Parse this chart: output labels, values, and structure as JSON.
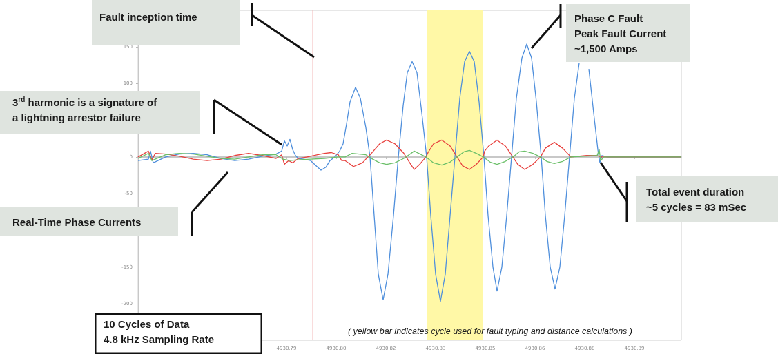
{
  "chart_data": {
    "type": "line",
    "xlim": [
      4930.747,
      4930.9044
    ],
    "xticks": [
      {
        "value": 4930.79,
        "label": "4930.79"
      },
      {
        "value": 4930.8044,
        "label": "4930.80"
      },
      {
        "value": 4930.8188,
        "label": "4930.82"
      },
      {
        "value": 4930.8332,
        "label": "4930.83"
      },
      {
        "value": 4930.8476,
        "label": "4930.85"
      },
      {
        "value": 4930.862,
        "label": "4930.86"
      },
      {
        "value": 4930.8764,
        "label": "4930.88"
      },
      {
        "value": 4930.8908,
        "label": "4930.89"
      }
    ],
    "ylim": [
      -250,
      200
    ],
    "yticks": [
      -200,
      -150,
      {
        "value": -100,
        "label": null
      },
      -50,
      0,
      {
        "value": 50,
        "label": null
      },
      100,
      150
    ],
    "series": [
      {
        "color": "#4f8fdc",
        "x": [
          4930.747,
          4930.75,
          4930.7506,
          4930.7514,
          4930.755,
          4930.759,
          4930.763,
          4930.767,
          4930.771,
          4930.775,
          4930.779,
          4930.783,
          4930.787,
          4930.7886,
          4930.7894,
          4930.7902,
          4930.791,
          4930.7918,
          4930.7926,
          4930.7934,
          4930.795,
          4930.797,
          4930.7986,
          4930.8,
          4930.8014,
          4930.8026,
          4930.804,
          4930.8054,
          4930.8064,
          4930.8074,
          4930.8084,
          4930.81,
          4930.8114,
          4930.813,
          4930.8142,
          4930.8154,
          4930.8166,
          4930.818,
          4930.8194,
          4930.821,
          4930.8224,
          4930.8238,
          4930.825,
          4930.8264,
          4930.8278,
          4930.8292,
          4930.8306,
          4930.8318,
          4930.8332,
          4930.8346,
          4930.836,
          4930.8374,
          4930.8388,
          4930.8402,
          4930.8416,
          4930.843,
          4930.8444,
          4930.8458,
          4930.8472,
          4930.8484,
          4930.8498,
          4930.851,
          4930.8524,
          4930.8538,
          4930.8552,
          4930.8566,
          4930.8582,
          4930.8596,
          4930.861,
          4930.8624,
          4930.8638,
          4930.865,
          4930.8664,
          4930.8678,
          4930.8692,
          4930.8706,
          4930.872,
          4930.8734,
          4930.8748,
          4930.8762,
          4930.8776,
          4930.879,
          4930.8802,
          4930.8808,
          4930.8814,
          4930.883,
          4930.9044
        ],
        "values": [
          -5,
          -3,
          8,
          -8,
          0,
          4,
          5,
          3,
          -2,
          -5,
          -3,
          1,
          4,
          8,
          22,
          15,
          24,
          10,
          2,
          -2,
          -3,
          -5,
          -12,
          -18,
          -14,
          -5,
          0,
          8,
          18,
          45,
          75,
          95,
          80,
          40,
          0,
          -80,
          -160,
          -195,
          -160,
          -80,
          0,
          70,
          115,
          130,
          115,
          60,
          0,
          -80,
          -160,
          -197,
          -160,
          -80,
          0,
          80,
          130,
          144,
          130,
          75,
          0,
          -80,
          -150,
          -183,
          -150,
          -80,
          0,
          80,
          135,
          154,
          135,
          75,
          0,
          -80,
          -150,
          -180,
          -150,
          -80,
          0,
          80,
          128,
          null,
          120,
          60,
          10,
          -8,
          2,
          0,
          0
        ]
      },
      {
        "color": "#e8423f",
        "x": [
          4930.747,
          4930.75,
          4930.751,
          4930.752,
          4930.755,
          4930.759,
          4930.763,
          4930.767,
          4930.771,
          4930.775,
          4930.779,
          4930.783,
          4930.787,
          4930.7886,
          4930.7894,
          4930.7906,
          4930.7918,
          4930.7934,
          4930.796,
          4930.799,
          4930.801,
          4930.803,
          4930.805,
          4930.806,
          4930.807,
          4930.8094,
          4930.812,
          4930.8146,
          4930.817,
          4930.819,
          4930.8214,
          4930.824,
          4930.826,
          4930.827,
          4930.8286,
          4930.8304,
          4930.831,
          4930.8326,
          4930.835,
          4930.8374,
          4930.8394,
          4930.841,
          4930.843,
          4930.845,
          4930.847,
          4930.8474,
          4930.8486,
          4930.851,
          4930.8534,
          4930.8556,
          4930.857,
          4930.859,
          4930.8614,
          4930.8636,
          4930.865,
          4930.8676,
          4930.87,
          4930.8724,
          4930.877,
          4930.88,
          4930.881,
          4930.9044
        ],
        "values": [
          0,
          8,
          -4,
          5,
          4,
          1,
          -3,
          -5,
          -3,
          2,
          5,
          2,
          -2,
          3,
          -10,
          -5,
          -8,
          -2,
          0,
          3,
          5,
          6,
          3,
          -5,
          -5,
          -13,
          -8,
          5,
          18,
          23,
          18,
          5,
          -10,
          -17,
          -10,
          0,
          6,
          18,
          23,
          15,
          0,
          -12,
          -17,
          -10,
          0,
          8,
          15,
          23,
          15,
          0,
          -10,
          -17,
          -10,
          0,
          12,
          20,
          12,
          0,
          2,
          2,
          0,
          0
        ]
      },
      {
        "color": "#6cc06a",
        "x": [
          4930.747,
          4930.75,
          4930.751,
          4930.755,
          4930.759,
          4930.763,
          4930.767,
          4930.771,
          4930.775,
          4930.779,
          4930.783,
          4930.787,
          4930.789,
          4930.791,
          4930.793,
          4930.797,
          4930.801,
          4930.805,
          4930.807,
          4930.809,
          4930.813,
          4930.815,
          4930.817,
          4930.819,
          4930.8214,
          4930.824,
          4930.827,
          4930.8304,
          4930.8326,
          4930.835,
          4930.8374,
          4930.8394,
          4930.8414,
          4930.843,
          4930.845,
          4930.847,
          4930.849,
          4930.851,
          4930.8534,
          4930.8556,
          4930.8574,
          4930.859,
          4930.8614,
          4930.8636,
          4930.8654,
          4930.8676,
          4930.87,
          4930.8724,
          4930.88,
          4930.8806,
          4930.881,
          4930.882,
          4930.9044
        ],
        "values": [
          -2,
          5,
          -5,
          3,
          5,
          4,
          1,
          -2,
          -3,
          0,
          3,
          3,
          -3,
          -5,
          -4,
          -3,
          -2,
          0,
          0,
          5,
          3,
          -3,
          -8,
          -10,
          -8,
          -2,
          8,
          0,
          -8,
          -11,
          -7,
          0,
          7,
          9,
          5,
          0,
          -7,
          -10,
          -6,
          0,
          7,
          8,
          5,
          0,
          -6,
          -9,
          -6,
          0,
          2,
          10,
          -5,
          0,
          0
        ]
      }
    ],
    "ref_lines": [
      {
        "axis": "x",
        "value": 4930.7976,
        "color": "#f2b8b8"
      }
    ],
    "bands": [
      {
        "axis": "x",
        "from": 4930.8306,
        "to": 4930.847,
        "color": "#fff8a6"
      }
    ],
    "annotations": [
      "Fault inception time",
      "Phase C Fault\nPeak Fault Current\n~1,500 Amps",
      "3$^{rd}$ harmonic is a signature of\na lightning arrestor failure",
      "Real-Time Phase Currents",
      "Total event duration\n~5 cycles = 83 mSec",
      "10 Cycles of Data\n4.8 kHz Sampling Rate",
      "( yellow bar indicates cycle used for fault typing and distance calculations )"
    ]
  }
}
